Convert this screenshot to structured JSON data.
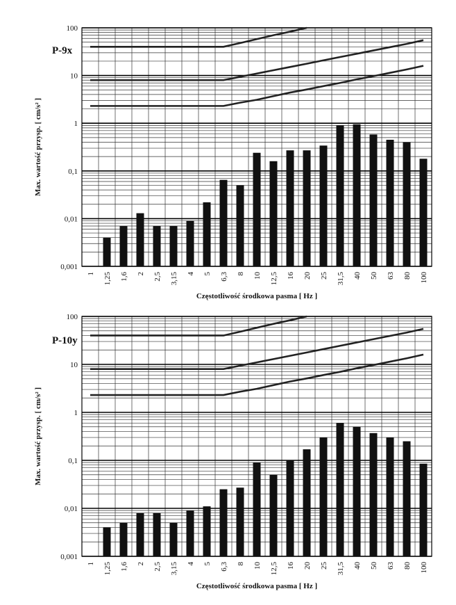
{
  "chart_data": [
    {
      "type": "bar",
      "title": "P-9x",
      "x_label": "Częstotliwość środkowa pasma  [ Hz ]",
      "y_label": "Max. wartość przysp.  [ cm/s² ]",
      "categories": [
        "1",
        "1,25",
        "1,6",
        "2",
        "2,5",
        "3,15",
        "4",
        "5",
        "6,3",
        "8",
        "10",
        "12,5",
        "16",
        "20",
        "25",
        "31,5",
        "40",
        "50",
        "63",
        "80",
        "100"
      ],
      "series": [
        {
          "type": "bar",
          "color": "#111111",
          "values": [
            null,
            0.004,
            0.007,
            0.013,
            0.007,
            0.007,
            0.009,
            0.022,
            0.065,
            0.05,
            0.24,
            0.16,
            0.27,
            0.27,
            0.34,
            0.9,
            0.95,
            0.58,
            0.45,
            0.4,
            0.18
          ]
        },
        {
          "type": "line",
          "color": "#222222",
          "values": [
            40,
            40,
            40,
            40,
            40,
            40,
            40,
            40,
            40,
            48,
            58,
            70,
            83,
            100,
            null,
            null,
            null,
            null,
            null,
            null,
            null
          ]
        },
        {
          "type": "line",
          "color": "#222222",
          "values": [
            8,
            8,
            8,
            8,
            8,
            8,
            8,
            8,
            8,
            9.4,
            11,
            12.9,
            15.1,
            17.7,
            20.8,
            24.4,
            28.6,
            33.5,
            39.3,
            46,
            55
          ]
        },
        {
          "type": "line",
          "color": "#222222",
          "values": [
            2.3,
            2.3,
            2.3,
            2.3,
            2.3,
            2.3,
            2.3,
            2.3,
            2.3,
            2.7,
            3.1,
            3.7,
            4.4,
            5.1,
            6.0,
            7.0,
            8.3,
            9.7,
            11.4,
            13.4,
            16
          ]
        }
      ],
      "log_y": true,
      "ylim": [
        0.001,
        100
      ],
      "yticks": [
        {
          "value": 0.001,
          "label": "0,001"
        },
        {
          "value": 0.01,
          "label": "0,01"
        },
        {
          "value": 0.1,
          "label": "0,1"
        },
        1,
        10,
        100
      ],
      "minor_yticks": [
        0.002,
        0.003,
        0.004,
        0.005,
        0.006,
        0.007,
        0.008,
        0.009,
        0.02,
        0.03,
        0.04,
        0.05,
        0.06,
        0.07,
        0.08,
        0.09,
        0.2,
        0.3,
        0.4,
        0.5,
        0.6,
        0.7,
        0.8,
        0.9,
        2,
        3,
        4,
        5,
        6,
        7,
        8,
        9,
        20,
        30,
        40,
        50,
        60,
        70,
        80,
        90
      ],
      "grid": true
    },
    {
      "type": "bar",
      "title": "P-10y",
      "x_label": "Częstotliwość środkowa pasma  [ Hz ]",
      "y_label": "Max. wartość przysp.  [ cm/s² ]",
      "categories": [
        "1",
        "1,25",
        "1,6",
        "2",
        "2,5",
        "3,15",
        "4",
        "5",
        "6,3",
        "8",
        "10",
        "12,5",
        "16",
        "20",
        "25",
        "31,5",
        "40",
        "50",
        "63",
        "80",
        "100"
      ],
      "series": [
        {
          "type": "bar",
          "color": "#111111",
          "values": [
            null,
            0.004,
            0.005,
            0.008,
            0.008,
            0.005,
            0.009,
            0.011,
            0.025,
            0.027,
            0.09,
            0.05,
            0.1,
            0.17,
            0.3,
            0.6,
            0.5,
            0.37,
            0.3,
            0.25,
            0.085
          ]
        },
        {
          "type": "line",
          "color": "#222222",
          "values": [
            40,
            40,
            40,
            40,
            40,
            40,
            40,
            40,
            40,
            48,
            58,
            70,
            83,
            100,
            null,
            null,
            null,
            null,
            null,
            null,
            null
          ]
        },
        {
          "type": "line",
          "color": "#222222",
          "values": [
            8,
            8,
            8,
            8,
            8,
            8,
            8,
            8,
            8,
            9.4,
            11,
            12.9,
            15.1,
            17.7,
            20.8,
            24.4,
            28.6,
            33.5,
            39.3,
            46,
            55
          ]
        },
        {
          "type": "line",
          "color": "#222222",
          "values": [
            2.3,
            2.3,
            2.3,
            2.3,
            2.3,
            2.3,
            2.3,
            2.3,
            2.3,
            2.7,
            3.1,
            3.7,
            4.4,
            5.1,
            6.0,
            7.0,
            8.3,
            9.7,
            11.4,
            13.4,
            16
          ]
        }
      ],
      "log_y": true,
      "ylim": [
        0.001,
        100
      ],
      "yticks": [
        {
          "value": 0.001,
          "label": "0,001"
        },
        {
          "value": 0.01,
          "label": "0,01"
        },
        {
          "value": 0.1,
          "label": "0,1"
        },
        1,
        10,
        100
      ],
      "minor_yticks": [
        0.002,
        0.003,
        0.004,
        0.005,
        0.006,
        0.007,
        0.008,
        0.009,
        0.02,
        0.03,
        0.04,
        0.05,
        0.06,
        0.07,
        0.08,
        0.09,
        0.2,
        0.3,
        0.4,
        0.5,
        0.6,
        0.7,
        0.8,
        0.9,
        2,
        3,
        4,
        5,
        6,
        7,
        8,
        9,
        20,
        30,
        40,
        50,
        60,
        70,
        80,
        90
      ],
      "grid": true
    }
  ]
}
